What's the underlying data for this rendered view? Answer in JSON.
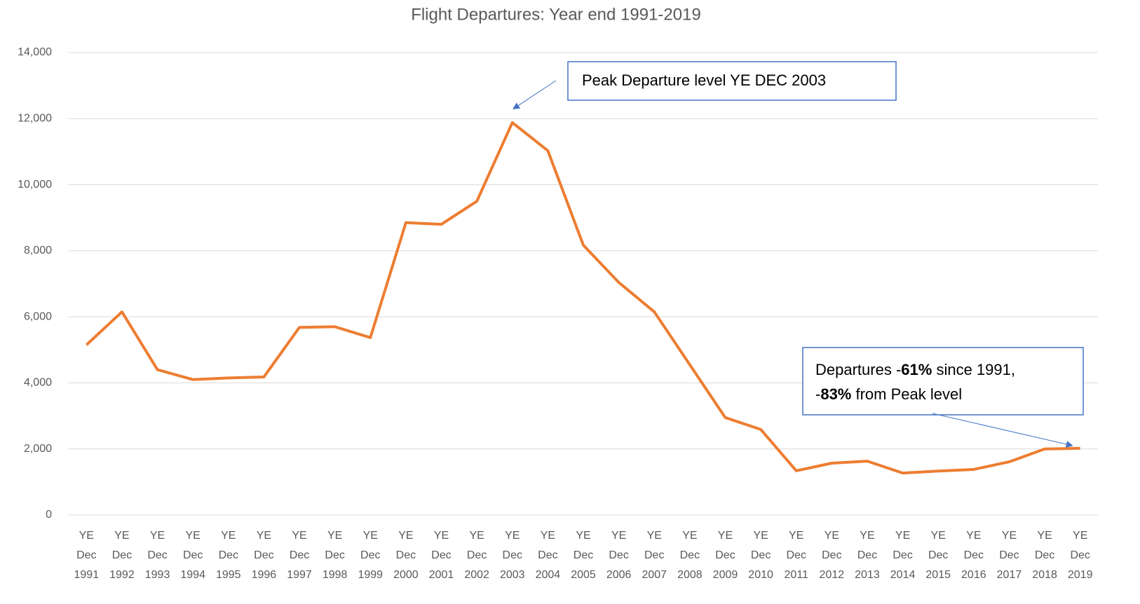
{
  "chart_data": {
    "type": "line",
    "title": "Flight Departures: Year end 1991-2019",
    "categories": [
      "YE Dec 1991",
      "YE Dec 1992",
      "YE Dec 1993",
      "YE Dec 1994",
      "YE Dec 1995",
      "YE Dec 1996",
      "YE Dec 1997",
      "YE Dec 1998",
      "YE Dec 1999",
      "YE Dec 2000",
      "YE Dec 2001",
      "YE Dec 2002",
      "YE Dec 2003",
      "YE Dec 2004",
      "YE Dec 2005",
      "YE Dec 2006",
      "YE Dec 2007",
      "YE Dec 2008",
      "YE Dec 2009",
      "YE Dec 2010",
      "YE Dec 2011",
      "YE Dec 2012",
      "YE Dec 2013",
      "YE Dec 2014",
      "YE Dec 2015",
      "YE Dec 2016",
      "YE Dec 2017",
      "YE Dec 2018",
      "YE Dec 2019"
    ],
    "values": [
      5150,
      6150,
      4400,
      4100,
      4150,
      4180,
      5680,
      5700,
      5370,
      8850,
      8800,
      9500,
      11880,
      11030,
      8170,
      7040,
      6150,
      4550,
      2950,
      2590,
      1340,
      1570,
      1630,
      1270,
      1330,
      1380,
      1610,
      2000,
      2020
    ],
    "color": "#ed7d31",
    "ylim": [
      0,
      14000
    ],
    "yticks": [
      0,
      {
        "value": 2000,
        "label": "2,000"
      },
      {
        "value": 4000,
        "label": "4,000"
      },
      {
        "value": 6000,
        "label": "6,000"
      },
      {
        "value": 8000,
        "label": "8,000"
      },
      {
        "value": 10000,
        "label": "10,000"
      },
      {
        "value": 12000,
        "label": "12,000"
      },
      {
        "value": 14000,
        "label": "14,000"
      }
    ],
    "grid": true,
    "annotations": [
      {
        "lines": [
          [
            {
              "text": "Peak Departure level YE DEC 2003"
            }
          ]
        ]
      },
      {
        "lines": [
          [
            {
              "text": "Departures -"
            },
            {
              "text": "61%",
              "bold": true
            },
            {
              "text": " since 1991,"
            }
          ],
          [
            {
              "text": "-"
            },
            {
              "text": "83%",
              "bold": true
            },
            {
              "text": " from Peak level"
            }
          ]
        ]
      }
    ]
  }
}
